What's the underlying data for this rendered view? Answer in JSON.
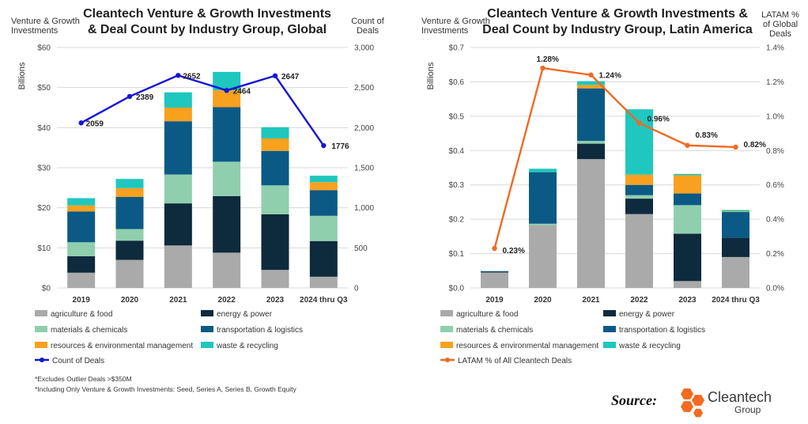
{
  "colors": {
    "agriculture": "#aaaaaa",
    "energy": "#0e2a3d",
    "materials": "#8fcfae",
    "transportation": "#0b5a86",
    "resources": "#f7a11f",
    "waste": "#1fc7be",
    "deals_line": "#1515d6",
    "latam_line": "#f06a22",
    "logo": "#f36a21"
  },
  "chart_data": [
    {
      "type": "bar",
      "stacked": true,
      "title_lines": [
        "Cleantech Venture & Growth Investments",
        "& Deal Count by Industry Group, Global"
      ],
      "ylabel_left_lines": [
        "Venture & Growth",
        "Investments"
      ],
      "ylabel_left_rot": "Billions",
      "ylabel_right_lines": [
        "Count of",
        "Deals"
      ],
      "categories": [
        "2019",
        "2020",
        "2021",
        "2022",
        "2023",
        "2024 thru Q3"
      ],
      "ylim": [
        0,
        60
      ],
      "y_ticks": [
        "$0",
        "$10",
        "$20",
        "$30",
        "$40",
        "$50",
        "$60"
      ],
      "y_tick_values": [
        0,
        10,
        20,
        30,
        40,
        50,
        60
      ],
      "y2lim": [
        0,
        3000
      ],
      "y2_ticks": [
        "0",
        "500",
        "1,000",
        "1,500",
        "2,000",
        "2,500",
        "3,000"
      ],
      "y2_tick_values": [
        0,
        500,
        1000,
        1500,
        2000,
        2500,
        3000
      ],
      "grid": true,
      "series": [
        {
          "name": "agriculture & food",
          "color_key": "agriculture",
          "values": [
            3.8,
            7.0,
            10.6,
            8.8,
            4.5,
            2.8
          ]
        },
        {
          "name": "energy & power",
          "color_key": "energy",
          "values": [
            4.1,
            4.8,
            10.5,
            14.1,
            13.9,
            8.9
          ]
        },
        {
          "name": "materials & chemicals",
          "color_key": "materials",
          "values": [
            3.5,
            2.9,
            7.2,
            8.6,
            7.2,
            6.3
          ]
        },
        {
          "name": "transportation & logistics",
          "color_key": "transportation",
          "values": [
            7.7,
            8.0,
            13.3,
            13.6,
            8.6,
            6.4
          ]
        },
        {
          "name": "resources & environmental management",
          "color_key": "resources",
          "values": [
            1.5,
            2.2,
            3.4,
            4.2,
            3.1,
            2.0
          ]
        },
        {
          "name": "waste & recycling",
          "color_key": "waste",
          "values": [
            1.8,
            2.3,
            3.8,
            4.6,
            2.8,
            1.6
          ]
        }
      ],
      "line": {
        "name": "Count of Deals",
        "color_key": "deals_line",
        "values": [
          2059,
          2389,
          2652,
          2464,
          2647,
          1776
        ],
        "labels": [
          "2059",
          "2389",
          "2652",
          "2464",
          "2647",
          "1776"
        ]
      },
      "legend_placement": "bottom",
      "footnotes": [
        "*Excludes Outlier Deals >$350M",
        "*Including Only Venture & Growth Investments: Seed, Series A, Series B, Growth Equity"
      ]
    },
    {
      "type": "bar",
      "stacked": true,
      "title_lines": [
        "Cleantech Venture & Growth Investments &",
        "Deal Count by Industry Group, Latin America"
      ],
      "ylabel_left_lines": [
        "Venture & Growth",
        "Investments"
      ],
      "ylabel_left_rot": "Billions",
      "ylabel_right_lines": [
        "LATAM %",
        "of Global",
        "Deals"
      ],
      "categories": [
        "2019",
        "2020",
        "2021",
        "2022",
        "2023",
        "2024 thru Q3"
      ],
      "ylim": [
        0,
        0.7
      ],
      "y_ticks": [
        "$0.0",
        "$0.1",
        "$0.2",
        "$0.3",
        "$0.4",
        "$0.5",
        "$0.6",
        "$0.7"
      ],
      "y_tick_values": [
        0,
        0.1,
        0.2,
        0.3,
        0.4,
        0.5,
        0.6,
        0.7
      ],
      "y2lim": [
        0,
        1.4
      ],
      "y2_ticks": [
        "0.0%",
        "0.2%",
        "0.4%",
        "0.6%",
        "0.8%",
        "1.0%",
        "1.2%",
        "1.4%"
      ],
      "y2_tick_values": [
        0,
        0.2,
        0.4,
        0.6,
        0.8,
        1.0,
        1.2,
        1.4
      ],
      "grid": true,
      "series": [
        {
          "name": "agriculture & food",
          "color_key": "agriculture",
          "values": [
            0.045,
            0.182,
            0.375,
            0.215,
            0.02,
            0.09
          ]
        },
        {
          "name": "energy & power",
          "color_key": "energy",
          "values": [
            0.002,
            0.0,
            0.045,
            0.045,
            0.138,
            0.056
          ]
        },
        {
          "name": "materials & chemicals",
          "color_key": "materials",
          "values": [
            0.0,
            0.005,
            0.008,
            0.01,
            0.083,
            0.0
          ]
        },
        {
          "name": "transportation & logistics",
          "color_key": "transportation",
          "values": [
            0.002,
            0.15,
            0.153,
            0.03,
            0.034,
            0.075
          ]
        },
        {
          "name": "resources & environmental management",
          "color_key": "resources",
          "values": [
            0.0,
            0.0,
            0.01,
            0.03,
            0.053,
            0.002
          ]
        },
        {
          "name": "waste & recycling",
          "color_key": "waste",
          "values": [
            0.0,
            0.01,
            0.011,
            0.19,
            0.004,
            0.004
          ]
        }
      ],
      "line": {
        "name": "LATAM % of All Cleantech Deals",
        "color_key": "latam_line",
        "values": [
          0.23,
          1.28,
          1.24,
          0.96,
          0.83,
          0.82
        ],
        "labels": [
          "0.23%",
          "1.28%",
          "1.24%",
          "0.96%",
          "0.83%",
          "0.82%"
        ]
      },
      "legend_placement": "bottom"
    }
  ],
  "source": {
    "label": "Source:",
    "logo_name": "Cleantech",
    "logo_sub": "Group"
  }
}
